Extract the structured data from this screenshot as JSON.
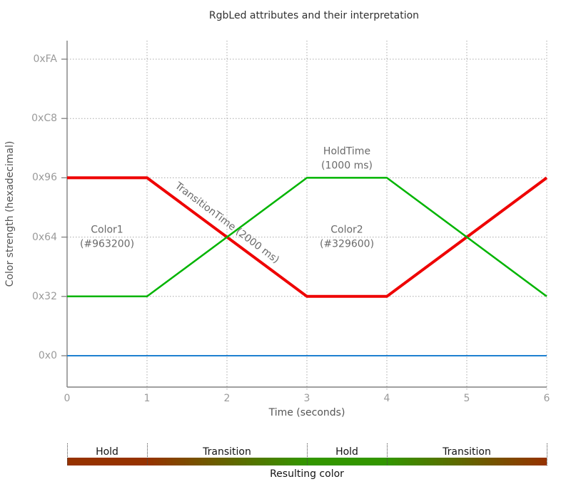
{
  "chart_data": {
    "type": "line",
    "title": "RgbLed attributes and their interpretation",
    "xlabel": "Time (seconds)",
    "ylabel": "Color strength (hexadecimal)",
    "xlim": [
      0,
      6
    ],
    "ylim": [
      0,
      265
    ],
    "grid": "dotted",
    "legend_position": "none",
    "x_ticks": [
      {
        "label": "0",
        "value": 0
      },
      {
        "label": "1",
        "value": 1
      },
      {
        "label": "2",
        "value": 2
      },
      {
        "label": "3",
        "value": 3
      },
      {
        "label": "4",
        "value": 4
      },
      {
        "label": "5",
        "value": 5
      },
      {
        "label": "6",
        "value": 6
      }
    ],
    "y_ticks": [
      {
        "label": "0x0",
        "value": 0
      },
      {
        "label": "0x32",
        "value": 50
      },
      {
        "label": "0x64",
        "value": 100
      },
      {
        "label": "0x96",
        "value": 150
      },
      {
        "label": "0xC8",
        "value": 200
      },
      {
        "label": "0xFA",
        "value": 250
      }
    ],
    "series": [
      {
        "name": "red-component",
        "color": "#ee0000",
        "width": 4,
        "points": [
          [
            0,
            150
          ],
          [
            1,
            150
          ],
          [
            3,
            50
          ],
          [
            4,
            50
          ],
          [
            6,
            150
          ]
        ]
      },
      {
        "name": "green-component",
        "color": "#00b400",
        "width": 2.5,
        "points": [
          [
            0,
            50
          ],
          [
            1,
            50
          ],
          [
            3,
            150
          ],
          [
            4,
            150
          ],
          [
            6,
            50
          ]
        ]
      },
      {
        "name": "blue-component",
        "color": "#1e80d0",
        "width": 2,
        "points": [
          [
            0,
            0
          ],
          [
            6,
            0
          ]
        ]
      }
    ],
    "annotations": [
      {
        "id": "color1",
        "lines": [
          "Color1",
          "(#963200)"
        ],
        "x": 0.5,
        "y": 100,
        "rotation": 0
      },
      {
        "id": "color2",
        "lines": [
          "Color2",
          "(#329600)"
        ],
        "x": 3.5,
        "y": 100,
        "rotation": 0
      },
      {
        "id": "hold-time",
        "lines": [
          "HoldTime",
          "(1000 ms)"
        ],
        "x": 3.5,
        "y": 166,
        "rotation": 0
      },
      {
        "id": "transition-time",
        "lines": [
          "TransitionTime (2000 ms)"
        ],
        "x": 2.0,
        "y": 112,
        "rotation": 37
      }
    ],
    "resulting_color_bar": {
      "label": "Resulting color",
      "segments": [
        {
          "label": "Hold",
          "from": 0,
          "to": 1,
          "color_start": "#963200",
          "color_end": "#963200"
        },
        {
          "label": "Transition",
          "from": 1,
          "to": 3,
          "color_start": "#963200",
          "color_end": "#329600"
        },
        {
          "label": "Hold",
          "from": 3,
          "to": 4,
          "color_start": "#329600",
          "color_end": "#329600"
        },
        {
          "label": "Transition",
          "from": 4,
          "to": 6,
          "color_start": "#329600",
          "color_end": "#963200"
        }
      ]
    },
    "colors": {
      "axis": "#808080",
      "grid": "#a8a8a8",
      "tick_label": "#9a9a9a",
      "axis_label": "#555555",
      "annotation": "#6a6a6a",
      "title": "#303030",
      "color1_hex": "#963200",
      "color2_hex": "#329600"
    }
  }
}
